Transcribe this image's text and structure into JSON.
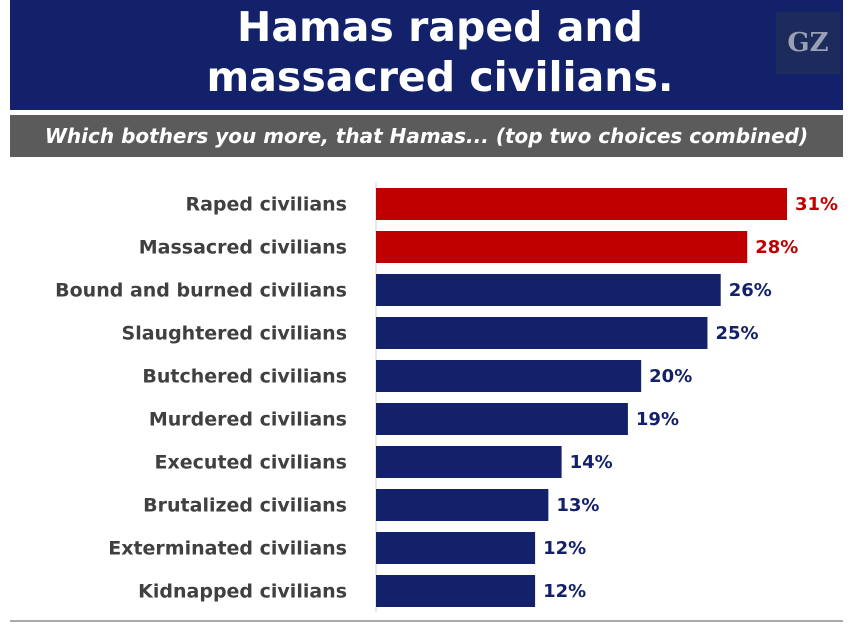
{
  "logo": "GZ",
  "chart_data": {
    "type": "hbar",
    "title": "Hamas raped and massacred civilians.",
    "subtitle": "Which bothers you more, that Hamas... (top two choices combined)",
    "categories": [
      "Raped civilians",
      "Massacred civilians",
      "Bound and burned civilians",
      "Slaughtered civilians",
      "Butchered civilians",
      "Murdered civilians",
      "Executed civilians",
      "Brutalized civilians",
      "Exterminated civilians",
      "Kidnapped civilians"
    ],
    "values": [
      31,
      28,
      26,
      25,
      20,
      19,
      14,
      13,
      12,
      12
    ],
    "value_labels": [
      "31%",
      "28%",
      "26%",
      "25%",
      "20%",
      "19%",
      "14%",
      "13%",
      "12%",
      "12%"
    ],
    "colors": [
      "#c00000",
      "#c00000",
      "#13216a",
      "#13216a",
      "#13216a",
      "#13216a",
      "#13216a",
      "#13216a",
      "#13216a",
      "#13216a"
    ]
  }
}
